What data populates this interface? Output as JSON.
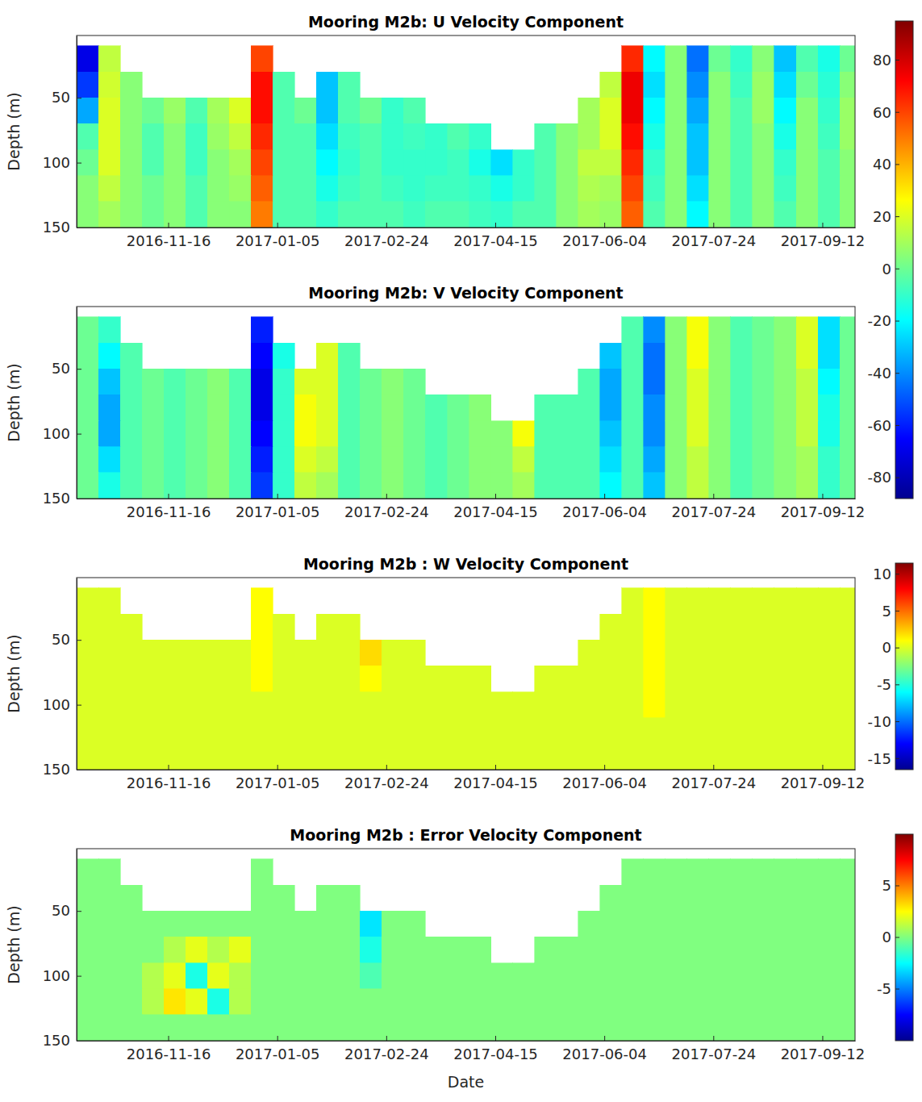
{
  "chart_data": {
    "type": "heatmap",
    "xlabel": "Date",
    "ylabel": "Depth (m)",
    "xlim": [
      "2016-10-05",
      "2017-09-27"
    ],
    "xticks": [
      "2016-11-16",
      "2017-01-05",
      "2017-02-24",
      "2017-04-15",
      "2017-06-04",
      "2017-07-24",
      "2017-09-12"
    ],
    "ylim": [
      2,
      150
    ],
    "yticks": [
      50,
      100,
      150
    ],
    "x": [
      "2016-10-05",
      "2016-10-15",
      "2016-10-25",
      "2016-11-04",
      "2016-11-14",
      "2016-11-24",
      "2016-12-04",
      "2016-12-14",
      "2016-12-24",
      "2017-01-03",
      "2017-01-13",
      "2017-01-23",
      "2017-02-02",
      "2017-02-12",
      "2017-02-22",
      "2017-03-04",
      "2017-03-14",
      "2017-03-24",
      "2017-04-03",
      "2017-04-13",
      "2017-04-23",
      "2017-05-03",
      "2017-05-13",
      "2017-05-23",
      "2017-06-02",
      "2017-06-12",
      "2017-06-22",
      "2017-07-02",
      "2017-07-12",
      "2017-07-22",
      "2017-08-01",
      "2017-08-11",
      "2017-08-21",
      "2017-08-31",
      "2017-09-10",
      "2017-09-20",
      "2017-09-30"
    ],
    "y": [
      10,
      30,
      50,
      70,
      90,
      110,
      130,
      150
    ],
    "panels": [
      {
        "title": "Mooring M2b: U Velocity Component",
        "colorbar_range": [
          -88,
          95
        ],
        "colorbar_ticks": [
          -80,
          -60,
          -40,
          -20,
          0,
          20,
          40,
          60,
          80
        ],
        "z": [
          [
            -70,
            15,
            null,
            null,
            null,
            null,
            null,
            null,
            60,
            null,
            null,
            null,
            null,
            null,
            null,
            null,
            null,
            null,
            null,
            null,
            null,
            null,
            null,
            null,
            null,
            65,
            -20,
            5,
            -45,
            0,
            -10,
            5,
            -30,
            -5,
            -15,
            0
          ],
          [
            -55,
            18,
            5,
            null,
            null,
            null,
            null,
            null,
            70,
            -5,
            null,
            -30,
            -5,
            null,
            null,
            null,
            null,
            null,
            null,
            null,
            null,
            null,
            null,
            null,
            15,
            75,
            -25,
            5,
            -40,
            5,
            -8,
            8,
            -25,
            0,
            -12,
            5
          ],
          [
            -35,
            20,
            5,
            0,
            8,
            -5,
            10,
            20,
            70,
            -5,
            0,
            -30,
            -5,
            0,
            -10,
            -5,
            null,
            null,
            null,
            null,
            null,
            null,
            null,
            10,
            20,
            75,
            -20,
            5,
            -35,
            5,
            -5,
            8,
            -20,
            5,
            -10,
            8
          ],
          [
            -5,
            20,
            5,
            -5,
            5,
            -8,
            8,
            15,
            65,
            -5,
            -5,
            -25,
            -8,
            -5,
            -10,
            -8,
            -10,
            -5,
            -10,
            null,
            null,
            -5,
            5,
            10,
            20,
            70,
            -15,
            5,
            -30,
            5,
            -5,
            5,
            -15,
            5,
            -8,
            8
          ],
          [
            0,
            20,
            5,
            -5,
            5,
            -8,
            5,
            10,
            60,
            -5,
            -5,
            -20,
            -10,
            -5,
            -10,
            -10,
            -10,
            -8,
            -15,
            -25,
            -10,
            -5,
            5,
            15,
            15,
            65,
            -10,
            5,
            -30,
            5,
            -5,
            5,
            -10,
            5,
            -5,
            5
          ],
          [
            5,
            15,
            5,
            0,
            5,
            -5,
            5,
            8,
            55,
            -5,
            -5,
            -15,
            -8,
            -5,
            -8,
            -10,
            -8,
            -8,
            -10,
            -15,
            -10,
            -5,
            5,
            12,
            10,
            60,
            -8,
            5,
            -25,
            5,
            -5,
            5,
            -8,
            5,
            -5,
            5
          ],
          [
            5,
            10,
            5,
            0,
            5,
            -5,
            5,
            5,
            50,
            -5,
            -5,
            -10,
            -5,
            -5,
            -5,
            -8,
            -5,
            -5,
            -8,
            -10,
            -5,
            -5,
            5,
            10,
            8,
            55,
            -5,
            5,
            -20,
            5,
            -5,
            5,
            -5,
            5,
            -5,
            5
          ]
        ]
      },
      {
        "title": "Mooring M2b: V Velocity Component",
        "colorbar_range": [
          -88,
          95
        ],
        "z": [
          [
            0,
            -10,
            null,
            null,
            null,
            null,
            null,
            null,
            -60,
            null,
            null,
            null,
            null,
            null,
            null,
            null,
            null,
            null,
            null,
            null,
            null,
            null,
            null,
            null,
            null,
            -5,
            -40,
            5,
            25,
            5,
            -5,
            0,
            5,
            20,
            -25,
            0
          ],
          [
            0,
            -20,
            -5,
            null,
            null,
            null,
            null,
            null,
            -65,
            -15,
            null,
            20,
            -5,
            null,
            null,
            null,
            null,
            null,
            null,
            null,
            null,
            null,
            null,
            null,
            -30,
            -5,
            -45,
            5,
            25,
            5,
            -5,
            0,
            5,
            20,
            -25,
            0
          ],
          [
            0,
            -30,
            -5,
            0,
            -5,
            0,
            5,
            -5,
            -70,
            -10,
            20,
            20,
            -5,
            0,
            5,
            0,
            null,
            null,
            null,
            null,
            null,
            null,
            null,
            -5,
            -35,
            -5,
            -45,
            5,
            20,
            5,
            -5,
            0,
            5,
            15,
            -20,
            0
          ],
          [
            0,
            -35,
            -5,
            0,
            -5,
            0,
            5,
            -5,
            -70,
            -10,
            25,
            20,
            -5,
            0,
            5,
            0,
            -5,
            0,
            5,
            null,
            null,
            -5,
            -5,
            -5,
            -35,
            -5,
            -40,
            5,
            20,
            5,
            -5,
            0,
            5,
            15,
            -15,
            0
          ],
          [
            0,
            -35,
            -5,
            0,
            -5,
            0,
            5,
            -5,
            -65,
            -10,
            25,
            20,
            -5,
            0,
            5,
            0,
            -5,
            0,
            5,
            5,
            25,
            -5,
            -5,
            -5,
            -30,
            -5,
            -40,
            5,
            20,
            5,
            -5,
            0,
            5,
            15,
            -15,
            0
          ],
          [
            0,
            -25,
            -5,
            0,
            -5,
            0,
            5,
            -5,
            -60,
            -10,
            20,
            15,
            -5,
            0,
            5,
            0,
            -5,
            0,
            5,
            5,
            15,
            -5,
            -5,
            -5,
            -25,
            -5,
            -35,
            5,
            15,
            5,
            -5,
            0,
            5,
            10,
            -10,
            0
          ],
          [
            0,
            -15,
            -5,
            0,
            -5,
            0,
            5,
            -5,
            -55,
            -10,
            15,
            10,
            -5,
            0,
            5,
            0,
            -5,
            0,
            5,
            5,
            10,
            -5,
            -5,
            -5,
            -20,
            -5,
            -30,
            5,
            15,
            5,
            -5,
            0,
            5,
            10,
            -10,
            0
          ]
        ]
      },
      {
        "title": "Mooring M2b : W Velocity Component",
        "colorbar_range": [
          -16.5,
          11.5
        ],
        "colorbar_ticks": [
          -15,
          -10,
          -5,
          0,
          5,
          10
        ],
        "z": [
          [
            0,
            0,
            null,
            null,
            null,
            null,
            null,
            null,
            1,
            null,
            null,
            null,
            null,
            null,
            null,
            null,
            null,
            null,
            null,
            null,
            null,
            null,
            null,
            null,
            null,
            0,
            1,
            0,
            0,
            0,
            0,
            0,
            0,
            0,
            0,
            0
          ],
          [
            0,
            0,
            0,
            null,
            null,
            null,
            null,
            null,
            1,
            0,
            null,
            0,
            0,
            null,
            null,
            null,
            null,
            null,
            null,
            null,
            null,
            null,
            null,
            null,
            0,
            0,
            1,
            0,
            0,
            0,
            0,
            0,
            0,
            0,
            0,
            0
          ],
          [
            0,
            0,
            0,
            0,
            0,
            0,
            0,
            0,
            1,
            0,
            0,
            0,
            0,
            2,
            0,
            0,
            null,
            null,
            null,
            null,
            null,
            null,
            null,
            0,
            0,
            0,
            1,
            0,
            0,
            0,
            0,
            0,
            0,
            0,
            0,
            0
          ],
          [
            0,
            0,
            0,
            0,
            0,
            0,
            0,
            0,
            1,
            0,
            0,
            0,
            0,
            1,
            0,
            0,
            0,
            0,
            0,
            null,
            null,
            0,
            0,
            0,
            0,
            0,
            1,
            0,
            0,
            0,
            0,
            0,
            0,
            0,
            0,
            0
          ],
          [
            0,
            0,
            0,
            0,
            0,
            0,
            0,
            0,
            0,
            0,
            0,
            0,
            0,
            0,
            0,
            0,
            0,
            0,
            0,
            0,
            0,
            0,
            0,
            0,
            0,
            0,
            1,
            0,
            0,
            0,
            0,
            0,
            0,
            0,
            0,
            0
          ],
          [
            0,
            0,
            0,
            0,
            0,
            0,
            0,
            0,
            0,
            0,
            0,
            0,
            0,
            0,
            0,
            0,
            0,
            0,
            0,
            0,
            0,
            0,
            0,
            0,
            0,
            0,
            0,
            0,
            0,
            0,
            0,
            0,
            0,
            0,
            0,
            0
          ],
          [
            0,
            0,
            0,
            0,
            0,
            0,
            0,
            0,
            0,
            0,
            0,
            0,
            0,
            0,
            0,
            0,
            0,
            0,
            0,
            0,
            0,
            0,
            0,
            0,
            0,
            0,
            0,
            0,
            0,
            0,
            0,
            0,
            0,
            0,
            0,
            0
          ]
        ]
      },
      {
        "title": "Mooring M2b : Error Velocity Component",
        "colorbar_range": [
          -10,
          10
        ],
        "colorbar_ticks": [
          -5,
          0,
          5
        ],
        "z": [
          [
            0,
            0,
            null,
            null,
            null,
            null,
            null,
            null,
            0,
            null,
            null,
            null,
            null,
            null,
            null,
            null,
            null,
            null,
            null,
            null,
            null,
            null,
            null,
            null,
            null,
            0,
            0,
            0,
            0,
            0,
            0,
            0,
            0,
            0,
            0,
            0
          ],
          [
            0,
            0,
            0,
            null,
            null,
            null,
            null,
            null,
            0,
            0,
            null,
            0,
            0,
            null,
            null,
            null,
            null,
            null,
            null,
            null,
            null,
            null,
            null,
            null,
            0,
            0,
            0,
            0,
            0,
            0,
            0,
            0,
            0,
            0,
            0,
            0
          ],
          [
            0,
            0,
            0,
            0,
            0,
            0,
            0,
            0,
            0,
            0,
            0,
            0,
            0,
            -3,
            0,
            0,
            null,
            null,
            null,
            null,
            null,
            null,
            null,
            0,
            0,
            0,
            0,
            0,
            0,
            0,
            0,
            0,
            0,
            0,
            0,
            0
          ],
          [
            0,
            0,
            0,
            0,
            1,
            2,
            1,
            2,
            0,
            0,
            0,
            0,
            0,
            -2,
            0,
            0,
            0,
            0,
            0,
            null,
            null,
            0,
            0,
            0,
            0,
            0,
            0,
            0,
            0,
            0,
            0,
            0,
            0,
            0,
            0,
            0
          ],
          [
            0,
            0,
            0,
            1,
            2,
            -2,
            2,
            1,
            0,
            0,
            0,
            0,
            0,
            -1,
            0,
            0,
            0,
            0,
            0,
            0,
            0,
            0,
            0,
            0,
            0,
            0,
            0,
            0,
            0,
            0,
            0,
            0,
            0,
            0,
            0,
            0
          ],
          [
            0,
            0,
            0,
            1,
            3,
            2,
            -2,
            1,
            0,
            0,
            0,
            0,
            0,
            0,
            0,
            0,
            0,
            0,
            0,
            0,
            0,
            0,
            0,
            0,
            0,
            0,
            0,
            0,
            0,
            0,
            0,
            0,
            0,
            0,
            0,
            0
          ],
          [
            0,
            0,
            0,
            0,
            0,
            0,
            0,
            0,
            0,
            0,
            0,
            0,
            0,
            0,
            0,
            0,
            0,
            0,
            0,
            0,
            0,
            0,
            0,
            0,
            0,
            0,
            0,
            0,
            0,
            0,
            0,
            0,
            0,
            0,
            0,
            0
          ]
        ]
      }
    ]
  }
}
